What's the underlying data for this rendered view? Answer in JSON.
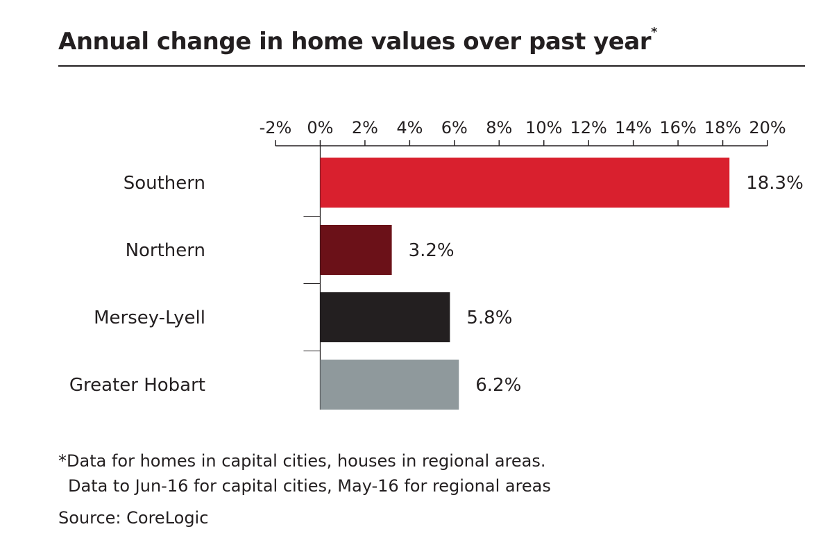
{
  "title": "Annual change in home values over past year",
  "title_marker": "*",
  "footnote": {
    "line1": "*Data for homes in capital cities, houses in regional areas.",
    "line2": "Data to Jun-16 for capital cities, May-16 for regional areas"
  },
  "source": "Source: CoreLogic",
  "chart_data": {
    "type": "bar",
    "orientation": "horizontal",
    "categories": [
      "Southern",
      "Northern",
      "Mersey-Lyell",
      "Greater Hobart"
    ],
    "values": [
      18.3,
      3.2,
      5.8,
      6.2
    ],
    "value_labels": [
      "18.3%",
      "3.2%",
      "5.8%",
      "6.2%"
    ],
    "colors": [
      "#d9202e",
      "#6b1118",
      "#231f20",
      "#8f999c"
    ],
    "xlim": [
      -2,
      20
    ],
    "xticks": [
      -2,
      0,
      2,
      4,
      6,
      8,
      10,
      12,
      14,
      16,
      18,
      20
    ],
    "xtick_labels": [
      "-2%",
      "0%",
      "2%",
      "4%",
      "6%",
      "8%",
      "10%",
      "12%",
      "14%",
      "16%",
      "18%",
      "20%"
    ],
    "xaxis_position": "top",
    "grid": false,
    "legend": "none",
    "xlabel": "",
    "ylabel": ""
  }
}
